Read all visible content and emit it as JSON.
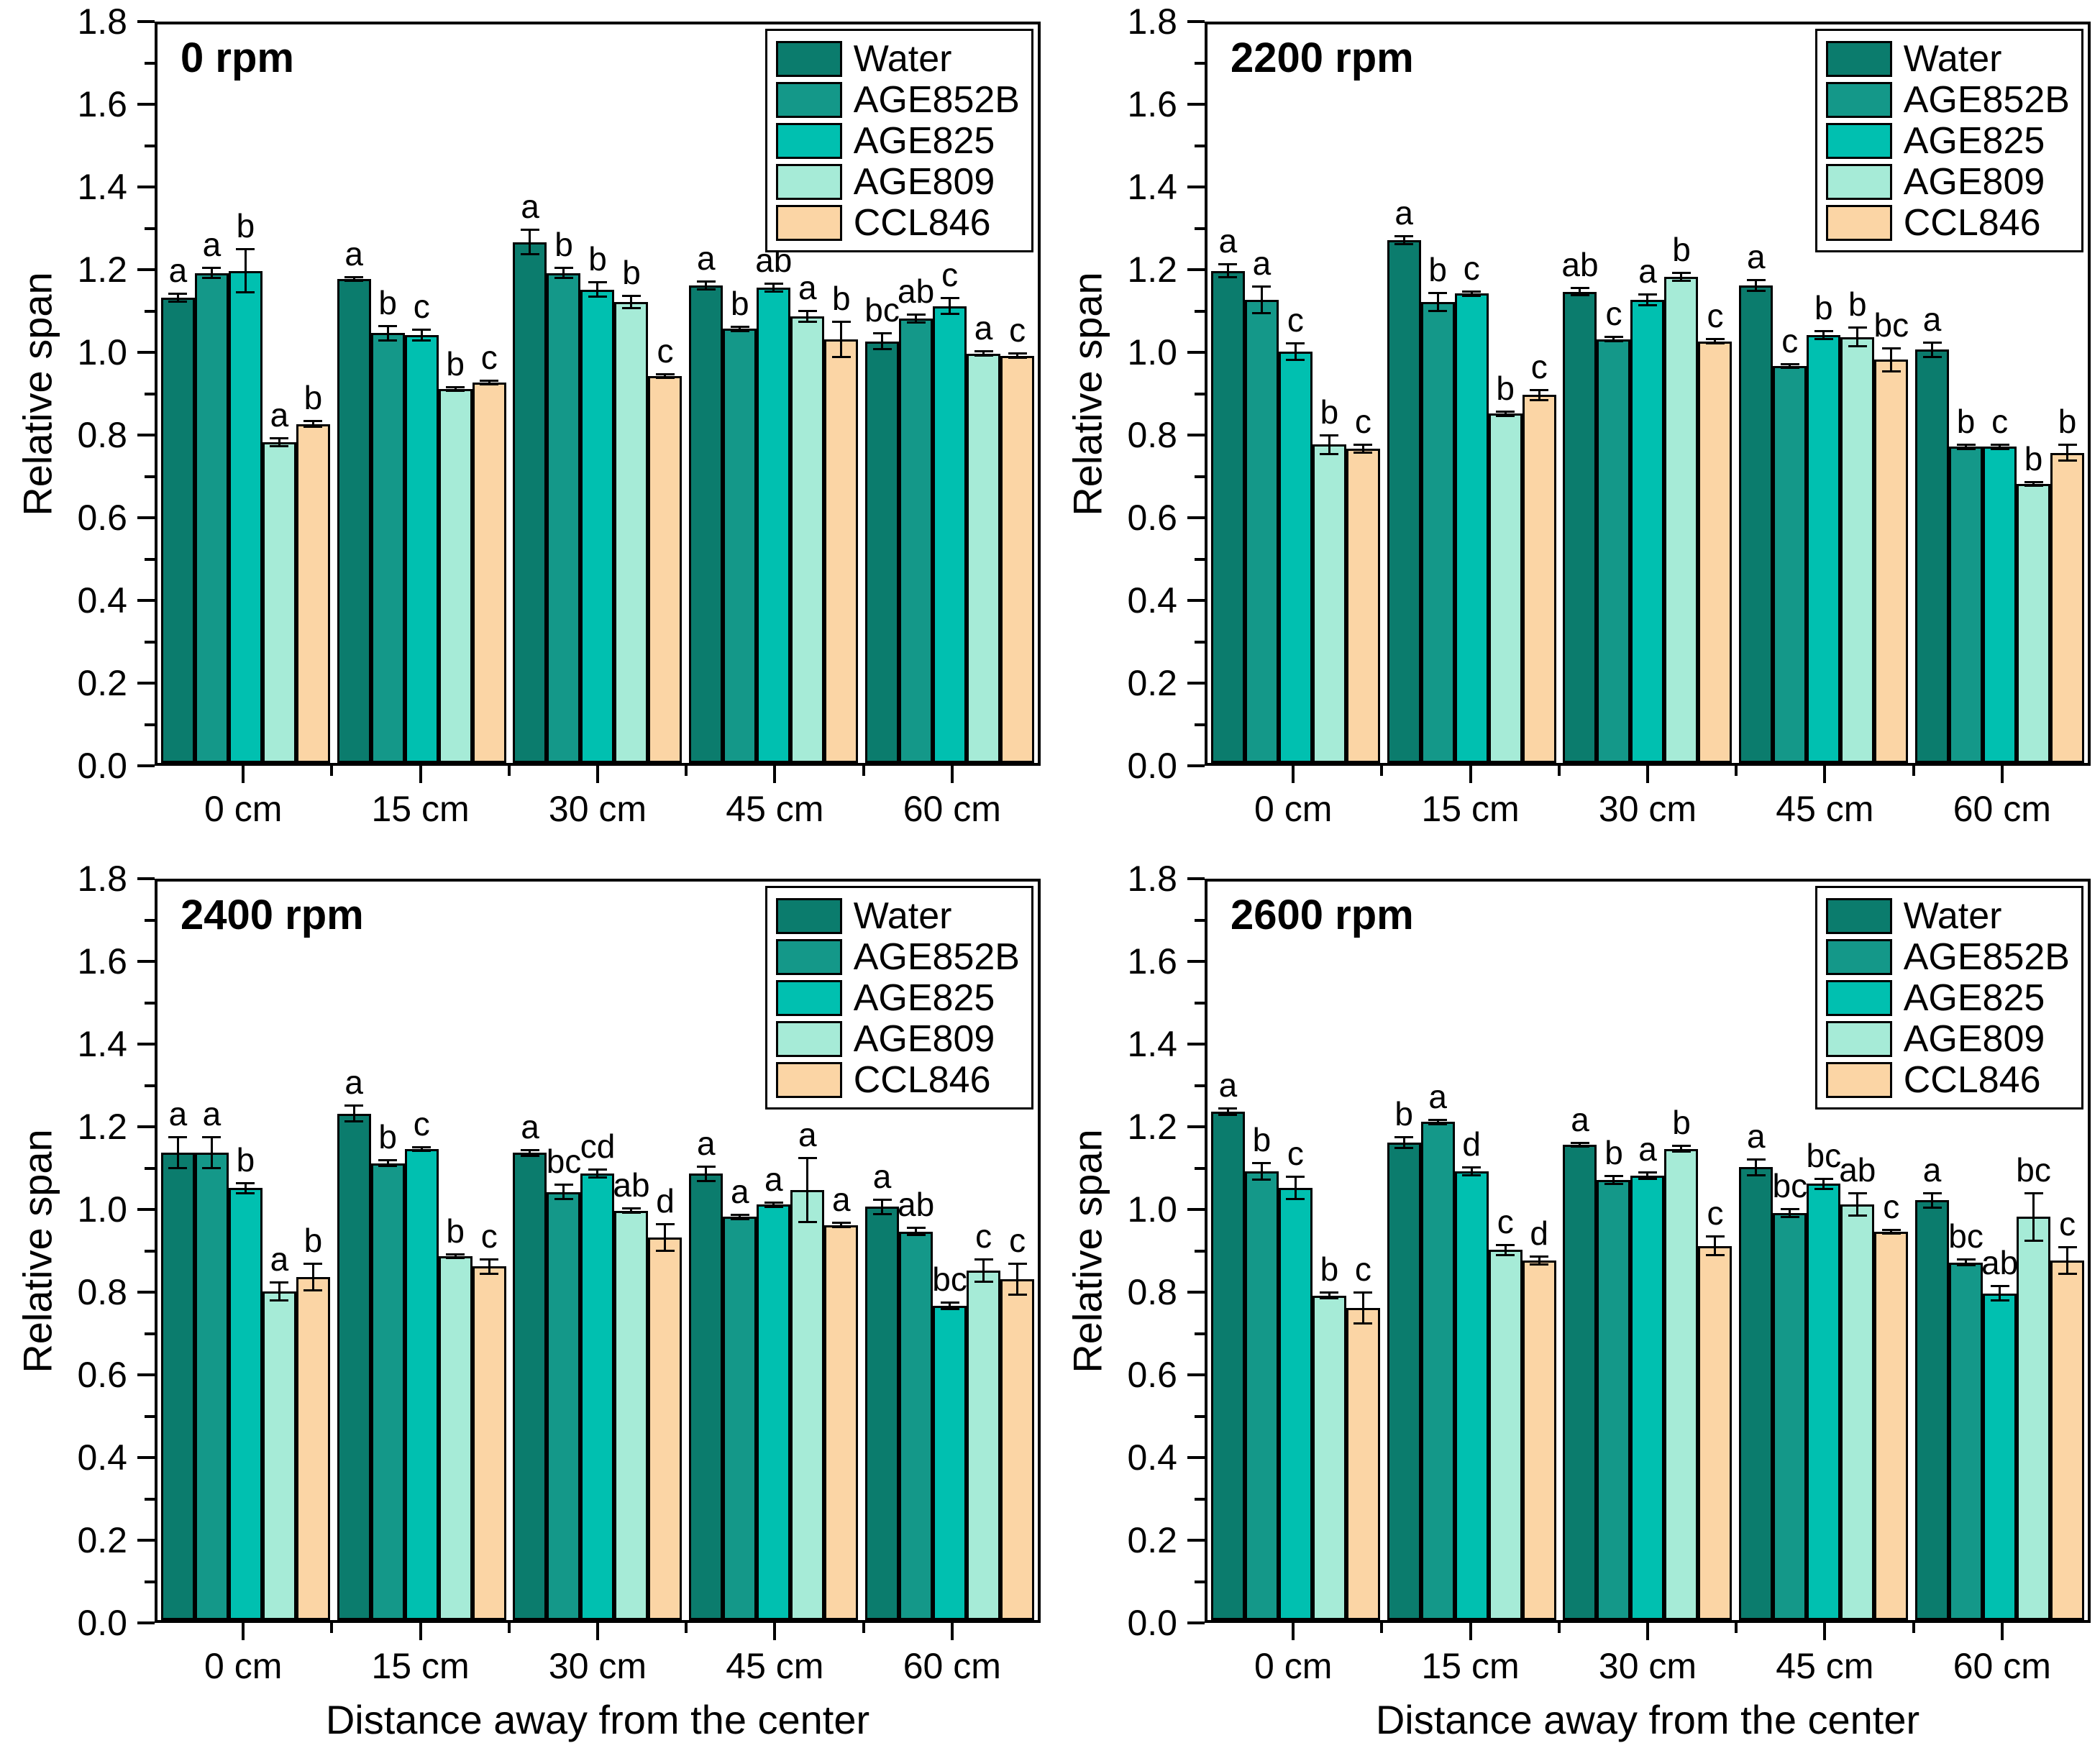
{
  "figure": {
    "ylabel": "Relative span",
    "xlabel": "Distance away from the center",
    "categories": [
      "0 cm",
      "15 cm",
      "30 cm",
      "45 cm",
      "60 cm"
    ],
    "legend_entries": [
      "Water",
      "AGE852B",
      "AGE825",
      "AGE809",
      "CCL846"
    ],
    "colors": {
      "Water": "#0B7C6D",
      "AGE852B": "#149889",
      "AGE825": "#00C0B0",
      "AGE809": "#A6EBD7",
      "CCL846": "#FBD5A5"
    },
    "axis_color": "#000000",
    "ylim": [
      0,
      1.8
    ],
    "ytick_step": 0.2,
    "yminor_step": 0.1,
    "legend_position": "top-right",
    "grid": false
  },
  "chart_data": [
    {
      "type": "bar",
      "title": "0 rpm",
      "categories": [
        "0 cm",
        "15 cm",
        "30 cm",
        "45 cm",
        "60 cm"
      ],
      "ylabel": "Relative span",
      "xlabel": "",
      "ylim": [
        0,
        1.8
      ],
      "series": [
        {
          "name": "Water",
          "values": [
            1.125,
            1.17,
            1.26,
            1.155,
            1.02
          ],
          "errors": [
            0.012,
            0.006,
            0.032,
            0.012,
            0.022
          ],
          "letters": [
            "a",
            "a",
            "a",
            "a",
            "bc"
          ]
        },
        {
          "name": "AGE852B",
          "values": [
            1.185,
            1.04,
            1.185,
            1.05,
            1.075
          ],
          "errors": [
            0.015,
            0.02,
            0.015,
            0.008,
            0.012
          ],
          "letters": [
            "a",
            "b",
            "b",
            "b",
            "ab"
          ]
        },
        {
          "name": "AGE825",
          "values": [
            1.19,
            1.035,
            1.145,
            1.15,
            1.105
          ],
          "errors": [
            0.055,
            0.015,
            0.02,
            0.012,
            0.022
          ],
          "letters": [
            "b",
            "c",
            "b",
            "ab",
            "c"
          ]
        },
        {
          "name": "AGE809",
          "values": [
            0.775,
            0.905,
            1.115,
            1.08,
            0.99
          ],
          "errors": [
            0.012,
            0.006,
            0.018,
            0.015,
            0.008
          ],
          "letters": [
            "a",
            "b",
            "b",
            "a",
            "a"
          ]
        },
        {
          "name": "CCL846",
          "values": [
            0.82,
            0.92,
            0.935,
            1.025,
            0.985
          ],
          "errors": [
            0.01,
            0.006,
            0.006,
            0.045,
            0.008
          ],
          "letters": [
            "b",
            "c",
            "c",
            "b",
            "c"
          ]
        }
      ]
    },
    {
      "type": "bar",
      "title": "2200 rpm",
      "categories": [
        "0 cm",
        "15 cm",
        "30 cm",
        "45 cm",
        "60 cm"
      ],
      "ylabel": "Relative span",
      "xlabel": "",
      "ylim": [
        0,
        1.8
      ],
      "series": [
        {
          "name": "Water",
          "values": [
            1.19,
            1.265,
            1.14,
            1.155,
            1.0
          ],
          "errors": [
            0.018,
            0.012,
            0.012,
            0.015,
            0.02
          ],
          "letters": [
            "a",
            "a",
            "ab",
            "a",
            "a"
          ]
        },
        {
          "name": "AGE852B",
          "values": [
            1.12,
            1.115,
            1.025,
            0.96,
            0.765
          ],
          "errors": [
            0.035,
            0.025,
            0.008,
            0.006,
            0.008
          ],
          "letters": [
            "a",
            "b",
            "c",
            "c",
            "b"
          ]
        },
        {
          "name": "AGE825",
          "values": [
            0.995,
            1.135,
            1.12,
            1.035,
            0.765
          ],
          "errors": [
            0.022,
            0.008,
            0.015,
            0.012,
            0.008
          ],
          "letters": [
            "c",
            "c",
            "a",
            "b",
            "c"
          ]
        },
        {
          "name": "AGE809",
          "values": [
            0.77,
            0.845,
            1.175,
            1.03,
            0.675
          ],
          "errors": [
            0.025,
            0.008,
            0.012,
            0.025,
            0.006
          ],
          "letters": [
            "b",
            "b",
            "b",
            "b",
            "b"
          ]
        },
        {
          "name": "CCL846",
          "values": [
            0.76,
            0.89,
            1.02,
            0.975,
            0.75
          ],
          "errors": [
            0.012,
            0.015,
            0.008,
            0.03,
            0.022
          ],
          "letters": [
            "c",
            "c",
            "c",
            "bc",
            "b"
          ]
        }
      ]
    },
    {
      "type": "bar",
      "title": "2400 rpm",
      "categories": [
        "0 cm",
        "15 cm",
        "30 cm",
        "45 cm",
        "60 cm"
      ],
      "ylabel": "Relative span",
      "xlabel": "Distance away from the center",
      "ylim": [
        0,
        1.8
      ],
      "series": [
        {
          "name": "Water",
          "values": [
            1.13,
            1.225,
            1.13,
            1.08,
            1.0
          ],
          "errors": [
            0.04,
            0.022,
            0.01,
            0.02,
            0.02
          ],
          "letters": [
            "a",
            "a",
            "a",
            "a",
            "a"
          ]
        },
        {
          "name": "AGE852B",
          "values": [
            1.13,
            1.105,
            1.035,
            0.975,
            0.94
          ],
          "errors": [
            0.04,
            0.01,
            0.02,
            0.008,
            0.012
          ],
          "letters": [
            "a",
            "b",
            "bc",
            "a",
            "ab"
          ]
        },
        {
          "name": "AGE825",
          "values": [
            1.045,
            1.14,
            1.08,
            1.005,
            0.76
          ],
          "errors": [
            0.015,
            0.006,
            0.012,
            0.008,
            0.01
          ],
          "letters": [
            "b",
            "c",
            "cd",
            "a",
            "bc"
          ]
        },
        {
          "name": "AGE809",
          "values": [
            0.795,
            0.88,
            0.99,
            1.04,
            0.845
          ],
          "errors": [
            0.025,
            0.006,
            0.008,
            0.08,
            0.03
          ],
          "letters": [
            "a",
            "b",
            "ab",
            "a",
            "c"
          ]
        },
        {
          "name": "CCL846",
          "values": [
            0.83,
            0.855,
            0.925,
            0.955,
            0.825
          ],
          "errors": [
            0.035,
            0.02,
            0.035,
            0.008,
            0.04
          ],
          "letters": [
            "b",
            "c",
            "d",
            "a",
            "c"
          ]
        }
      ]
    },
    {
      "type": "bar",
      "title": "2600 rpm",
      "categories": [
        "0 cm",
        "15 cm",
        "30 cm",
        "45 cm",
        "60 cm"
      ],
      "ylabel": "Relative span",
      "xlabel": "Distance away from the center",
      "ylim": [
        0,
        1.8
      ],
      "series": [
        {
          "name": "Water",
          "values": [
            1.23,
            1.155,
            1.15,
            1.095,
            1.015
          ],
          "errors": [
            0.01,
            0.015,
            0.006,
            0.022,
            0.02
          ],
          "letters": [
            "a",
            "b",
            "a",
            "a",
            "a"
          ]
        },
        {
          "name": "AGE852B",
          "values": [
            1.085,
            1.205,
            1.065,
            0.985,
            0.865
          ],
          "errors": [
            0.022,
            0.008,
            0.012,
            0.012,
            0.01
          ],
          "letters": [
            "b",
            "a",
            "b",
            "bc",
            "bc"
          ]
        },
        {
          "name": "AGE825",
          "values": [
            1.045,
            1.085,
            1.075,
            1.055,
            0.79
          ],
          "errors": [
            0.03,
            0.012,
            0.01,
            0.015,
            0.02
          ],
          "letters": [
            "c",
            "d",
            "a",
            "bc",
            "ab"
          ]
        },
        {
          "name": "AGE809",
          "values": [
            0.785,
            0.895,
            1.14,
            1.005,
            0.975
          ],
          "errors": [
            0.01,
            0.015,
            0.01,
            0.03,
            0.06
          ],
          "letters": [
            "b",
            "c",
            "b",
            "ab",
            "bc"
          ]
        },
        {
          "name": "CCL846",
          "values": [
            0.755,
            0.87,
            0.905,
            0.94,
            0.87
          ],
          "errors": [
            0.04,
            0.012,
            0.025,
            0.006,
            0.035
          ],
          "letters": [
            "c",
            "d",
            "c",
            "c",
            "c"
          ]
        }
      ]
    }
  ]
}
